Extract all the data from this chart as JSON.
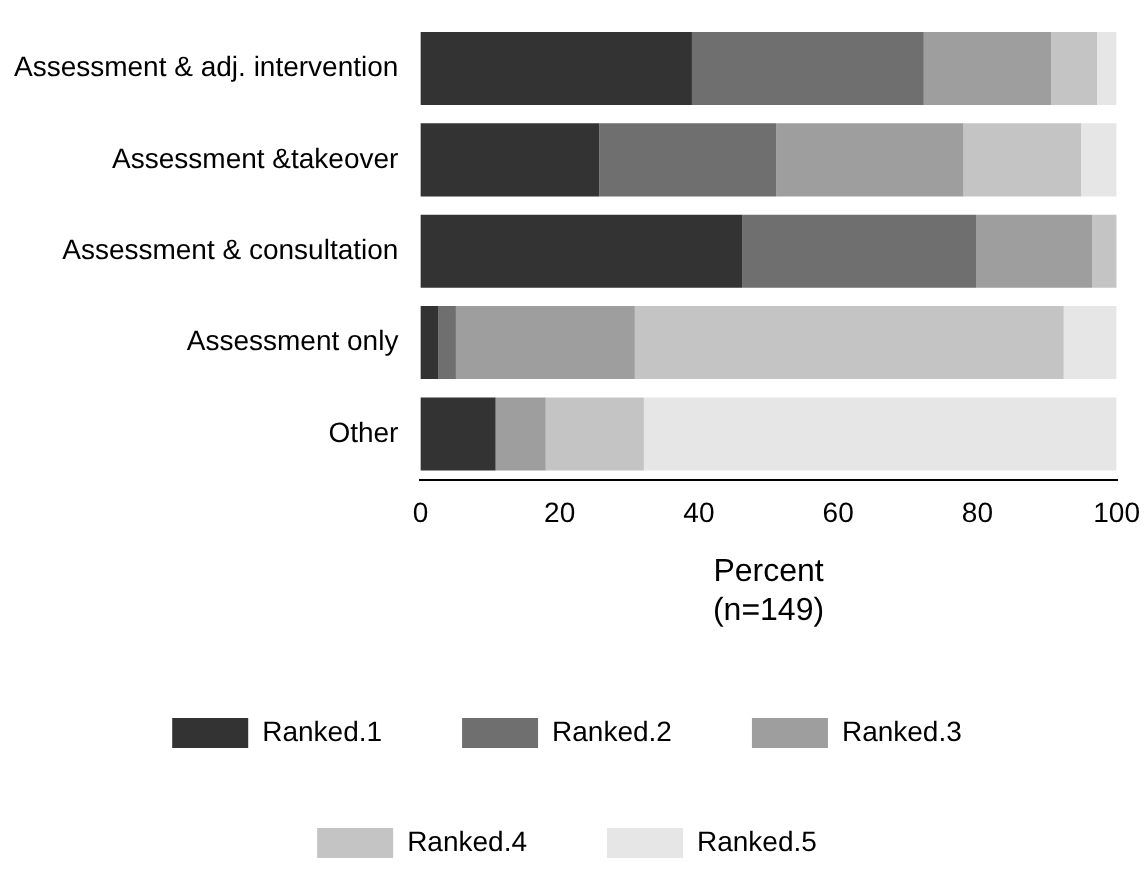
{
  "chart_data": {
    "type": "bar",
    "orientation": "horizontal",
    "stacked": true,
    "categories": [
      "Assessment & adj. intervention",
      "Assessment &takeover",
      "Assessment & consultation",
      "Assessment only",
      "Other"
    ],
    "series": [
      {
        "name": "Ranked.1",
        "color": "#333333",
        "values": [
          39.0,
          25.7,
          46.2,
          2.6,
          10.8
        ]
      },
      {
        "name": "Ranked.2",
        "color": "#6f6f6f",
        "values": [
          33.3,
          25.4,
          33.6,
          2.5,
          0
        ]
      },
      {
        "name": "Ranked.3",
        "color": "#9e9e9e",
        "values": [
          18.3,
          26.9,
          16.7,
          25.7,
          7.2
        ]
      },
      {
        "name": "Ranked.4",
        "color": "#c4c4c4",
        "values": [
          6.6,
          16.9,
          3.5,
          61.6,
          14.1
        ]
      },
      {
        "name": "Ranked.5",
        "color": "#e6e6e6",
        "values": [
          2.8,
          5.1,
          0,
          7.6,
          67.9
        ]
      }
    ],
    "xlim": [
      0,
      100
    ],
    "xticks": [
      0,
      20,
      40,
      60,
      80,
      100
    ],
    "xlabel": "Percent\n(n=149)",
    "grid": false,
    "legend": "bottom"
  }
}
